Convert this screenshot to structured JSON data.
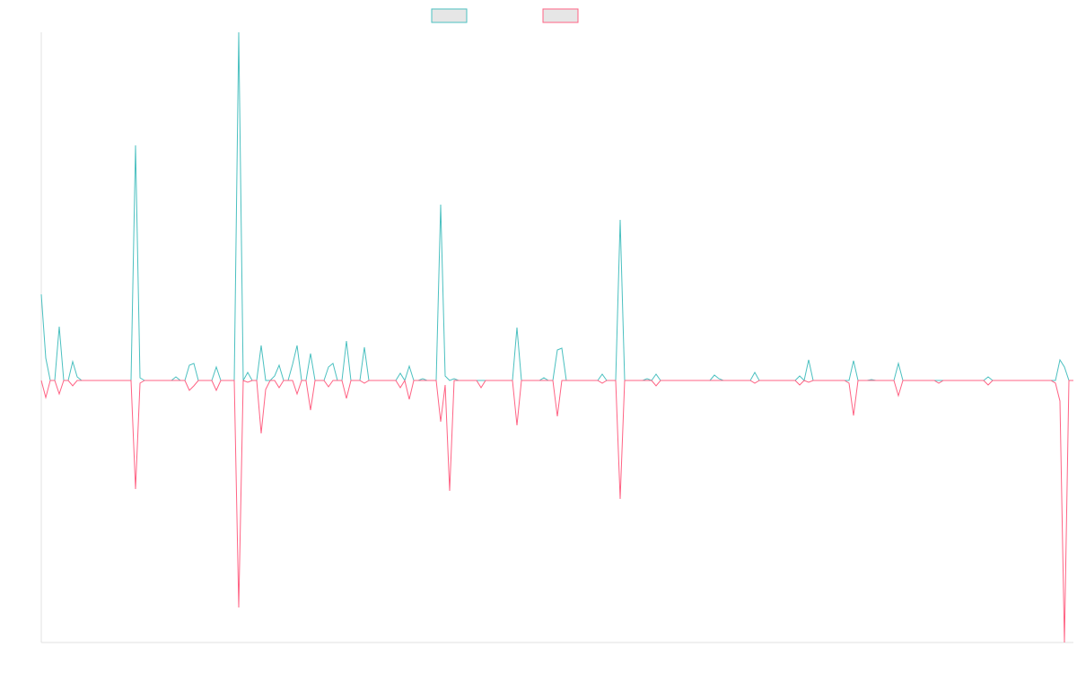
{
  "chart_data": {
    "type": "line",
    "categories": [
      null,
      null,
      null,
      null,
      null,
      null,
      null,
      null,
      null,
      null,
      null,
      null,
      null,
      null,
      null,
      null,
      null,
      null,
      null,
      null,
      null,
      null,
      null,
      null,
      null,
      null,
      null,
      null,
      null,
      null,
      null,
      null,
      null,
      null,
      null,
      null,
      null,
      null,
      null,
      null,
      null,
      null,
      null,
      null,
      null,
      null,
      null,
      null,
      null,
      null,
      null,
      null,
      null,
      null,
      null,
      null,
      null,
      null,
      null,
      null,
      null,
      null,
      null,
      null,
      null,
      null,
      null,
      null,
      null,
      null,
      null,
      null,
      null,
      null,
      null,
      null,
      null,
      null,
      null,
      null,
      null,
      null,
      null,
      null,
      null,
      null,
      null,
      null,
      null,
      null,
      null,
      null,
      null,
      null,
      null,
      null,
      null,
      null,
      null,
      null,
      null,
      null,
      null,
      null,
      null,
      null,
      null,
      null,
      null,
      null,
      null,
      null,
      null,
      null,
      null,
      null,
      null,
      null,
      null,
      null,
      null,
      null,
      null,
      null,
      null,
      null,
      null,
      null,
      null,
      null,
      null,
      null,
      null,
      null,
      null,
      null,
      null,
      null,
      null,
      null,
      null,
      null,
      null,
      null,
      null,
      null,
      null,
      null,
      null,
      null,
      null,
      null,
      null,
      null,
      null,
      null,
      null,
      null,
      null,
      null,
      null,
      null,
      null,
      null,
      null,
      null,
      null,
      null,
      null,
      null,
      null,
      null,
      null,
      null,
      null,
      null,
      null,
      null,
      null,
      null,
      null,
      null,
      null,
      null,
      null,
      null,
      null,
      null,
      null,
      null,
      null,
      null,
      null,
      null,
      null,
      null,
      null,
      null,
      null,
      null,
      null,
      null,
      null,
      null,
      null,
      null,
      null,
      null,
      null,
      null,
      null,
      null,
      null,
      null,
      null,
      null,
      null,
      null,
      null,
      null,
      null,
      null,
      null,
      null,
      null,
      null,
      null,
      null,
      null,
      null,
      null
    ],
    "series": [
      {
        "color": "#4bc0c0",
        "values": [
          96,
          25,
          0,
          0,
          60,
          0,
          0,
          21,
          4,
          0,
          0,
          0,
          0,
          0,
          0,
          0,
          0,
          0,
          0,
          0,
          0,
          262,
          3,
          0,
          0,
          0,
          0,
          0,
          0,
          0,
          4,
          0,
          0,
          17,
          19,
          0,
          0,
          0,
          0,
          15,
          0,
          0,
          0,
          0,
          388,
          0,
          9,
          0,
          0,
          39,
          0,
          0,
          5,
          17,
          0,
          0,
          18,
          39,
          0,
          0,
          30,
          0,
          0,
          0,
          15,
          19,
          0,
          0,
          44,
          0,
          0,
          0,
          37,
          0,
          0,
          0,
          0,
          0,
          0,
          0,
          8,
          0,
          16,
          0,
          0,
          2,
          0,
          0,
          0,
          196,
          5,
          0,
          2,
          0,
          0,
          0,
          0,
          0,
          0,
          0,
          0,
          0,
          0,
          0,
          0,
          0,
          59,
          0,
          0,
          0,
          0,
          0,
          3,
          0,
          0,
          34,
          36,
          0,
          0,
          0,
          0,
          0,
          0,
          0,
          0,
          7,
          0,
          0,
          0,
          179,
          0,
          0,
          0,
          0,
          0,
          2,
          0,
          7,
          0,
          0,
          0,
          0,
          0,
          0,
          0,
          0,
          0,
          0,
          0,
          0,
          6,
          2,
          0,
          0,
          0,
          0,
          0,
          0,
          0,
          9,
          0,
          0,
          0,
          0,
          0,
          0,
          0,
          0,
          0,
          5,
          0,
          23,
          0,
          0,
          0,
          0,
          0,
          0,
          0,
          0,
          0,
          22,
          0,
          0,
          0,
          1,
          0,
          0,
          0,
          0,
          0,
          19,
          0,
          0,
          0,
          0,
          0,
          0,
          0,
          0,
          0,
          0,
          0,
          0,
          0,
          0,
          0,
          0,
          0,
          0,
          0,
          4,
          0,
          0,
          0,
          0,
          0,
          0,
          0,
          0,
          0,
          0,
          0,
          0,
          0,
          0,
          0,
          23,
          15,
          0,
          0
        ]
      },
      {
        "color": "#ff6384",
        "values": [
          0,
          -19,
          0,
          0,
          -15,
          0,
          0,
          -6,
          0,
          0,
          0,
          0,
          0,
          0,
          0,
          0,
          0,
          0,
          0,
          0,
          0,
          -121,
          -3,
          0,
          0,
          0,
          0,
          0,
          0,
          0,
          0,
          0,
          0,
          -11,
          -6,
          0,
          0,
          0,
          0,
          -11,
          0,
          0,
          0,
          0,
          -253,
          0,
          -2,
          0,
          0,
          -59,
          -10,
          0,
          0,
          -8,
          0,
          0,
          0,
          -15,
          0,
          0,
          -33,
          0,
          0,
          0,
          -7,
          0,
          0,
          0,
          -20,
          0,
          0,
          0,
          -3,
          0,
          0,
          0,
          0,
          0,
          0,
          0,
          -8,
          0,
          -21,
          0,
          0,
          0,
          0,
          0,
          0,
          -46,
          -5,
          -123,
          0,
          0,
          0,
          0,
          0,
          0,
          -8,
          0,
          0,
          0,
          0,
          0,
          0,
          0,
          -50,
          0,
          0,
          0,
          0,
          0,
          0,
          0,
          0,
          -40,
          0,
          0,
          0,
          0,
          0,
          0,
          0,
          0,
          0,
          -3,
          0,
          0,
          0,
          -132,
          0,
          0,
          0,
          0,
          0,
          0,
          0,
          -6,
          0,
          0,
          0,
          0,
          0,
          0,
          0,
          0,
          0,
          0,
          0,
          0,
          0,
          0,
          0,
          0,
          0,
          0,
          0,
          0,
          0,
          -3,
          0,
          0,
          0,
          0,
          0,
          0,
          0,
          0,
          0,
          -5,
          0,
          -2,
          0,
          0,
          0,
          0,
          0,
          0,
          0,
          0,
          -3,
          -39,
          0,
          0,
          0,
          0,
          0,
          0,
          0,
          0,
          0,
          -17,
          0,
          0,
          0,
          0,
          0,
          0,
          0,
          0,
          -3,
          0,
          0,
          0,
          0,
          0,
          0,
          0,
          0,
          0,
          0,
          -5,
          0,
          0,
          0,
          0,
          0,
          0,
          0,
          0,
          0,
          0,
          0,
          0,
          0,
          0,
          -3,
          -23,
          -292,
          0,
          0
        ]
      }
    ],
    "ylim": [
      -292,
      388
    ]
  }
}
